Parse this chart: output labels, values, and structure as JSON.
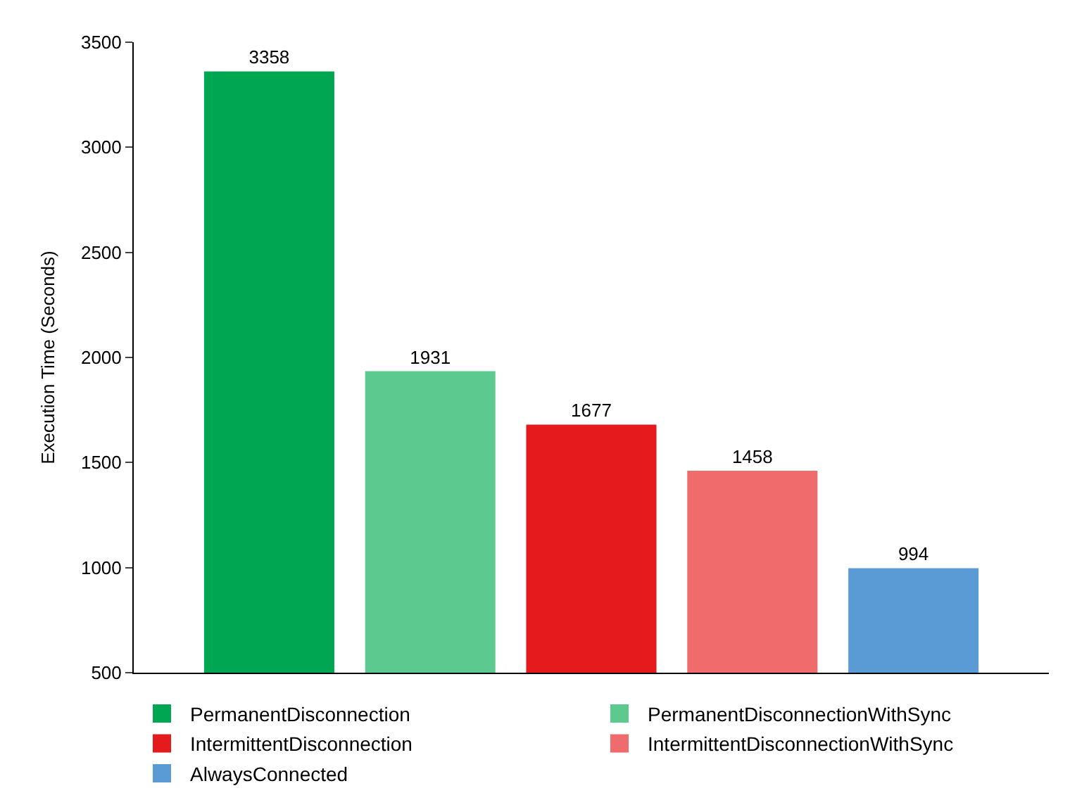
{
  "chart_data": {
    "type": "bar",
    "ylabel": "Execution Time (Seconds)",
    "categories": [
      null
    ],
    "series": [
      {
        "name": "PermanentDisconnection",
        "color": "#00a651",
        "values": [
          3358
        ]
      },
      {
        "name": "PermanentDisconnectionWithSync",
        "color": "#5cc98f",
        "values": [
          1931
        ]
      },
      {
        "name": "IntermittentDisconnection",
        "color": "#e41a1c",
        "values": [
          1677
        ]
      },
      {
        "name": "IntermittentDisconnectionWithSync",
        "color": "#f06b6b",
        "values": [
          1458
        ]
      },
      {
        "name": "AlwaysConnected",
        "color": "#5b9bd5",
        "values": [
          994
        ]
      }
    ],
    "ylim": [
      500,
      3500
    ],
    "yticks": [
      500,
      1000,
      1500,
      2000,
      2500,
      3000,
      3500
    ],
    "data_labels": true,
    "legend": "bottom"
  }
}
